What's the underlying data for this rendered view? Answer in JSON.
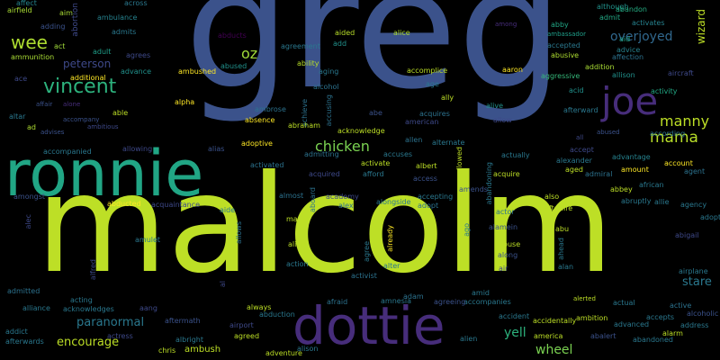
{
  "words": [
    {
      "text": "greg",
      "color": "#3b528b"
    },
    {
      "text": "malcolm",
      "color": "#bddf26"
    },
    {
      "text": "ronnie",
      "color": "#21a685"
    },
    {
      "text": "dottie",
      "color": "#472d7b"
    },
    {
      "text": "joe",
      "color": "#472d7b"
    },
    {
      "text": "vincent",
      "color": "#2db27d"
    },
    {
      "text": "wee",
      "color": "#addc30"
    },
    {
      "text": "mama",
      "color": "#b8de29"
    },
    {
      "text": "manny",
      "color": "#bddf26"
    },
    {
      "text": "chicken",
      "color": "#7ad151"
    },
    {
      "text": "oz",
      "color": "#a0da39"
    },
    {
      "text": "peterson",
      "color": "#3e4989"
    },
    {
      "text": "overjoyed",
      "color": "#31688e"
    },
    {
      "text": "wizard",
      "color": "#bddf26"
    },
    {
      "text": "paranormal",
      "color": "#2a788e"
    },
    {
      "text": "encourage",
      "color": "#bddf26"
    },
    {
      "text": "wheel",
      "color": "#7ad151"
    },
    {
      "text": "yell",
      "color": "#2db27d"
    },
    {
      "text": "stare",
      "color": "#2a788e"
    },
    {
      "text": "affect",
      "color": "#25858e"
    },
    {
      "text": "airfield",
      "color": "#a8db34"
    },
    {
      "text": "aim",
      "color": "#a8db34"
    },
    {
      "text": "abortion",
      "color": "#3e4989"
    },
    {
      "text": "across",
      "color": "#2a788e"
    },
    {
      "text": "ambulance",
      "color": "#26828e"
    },
    {
      "text": "adding",
      "color": "#3b528b"
    },
    {
      "text": "admits",
      "color": "#2a788e"
    },
    {
      "text": "among",
      "color": "#472d7b"
    },
    {
      "text": "abby",
      "color": "#21a685"
    },
    {
      "text": "although",
      "color": "#21918c"
    },
    {
      "text": "abandon",
      "color": "#25ac82"
    },
    {
      "text": "admit",
      "color": "#22a884"
    },
    {
      "text": "activates",
      "color": "#26828e"
    },
    {
      "text": "ammunition",
      "color": "#a8db34"
    },
    {
      "text": "act",
      "color": "#a0da39"
    },
    {
      "text": "adult",
      "color": "#1f9e89"
    },
    {
      "text": "abducts",
      "color": "#440154"
    },
    {
      "text": "agreement",
      "color": "#2a788e"
    },
    {
      "text": "add",
      "color": "#21918c"
    },
    {
      "text": "aided",
      "color": "#b8de29"
    },
    {
      "text": "alice",
      "color": "#addc30"
    },
    {
      "text": "ambassador",
      "color": "#1f9e89"
    },
    {
      "text": "accepted",
      "color": "#2a788e"
    },
    {
      "text": "aid",
      "color": "#20a486"
    },
    {
      "text": "advice",
      "color": "#26828e"
    },
    {
      "text": "agrees",
      "color": "#3e4989"
    },
    {
      "text": "ability",
      "color": "#b8de29"
    },
    {
      "text": "aaron",
      "color": "#fde725"
    },
    {
      "text": "abusive",
      "color": "#addc30"
    },
    {
      "text": "affection",
      "color": "#2c728e"
    },
    {
      "text": "ace",
      "color": "#3e4989"
    },
    {
      "text": "advance",
      "color": "#21918c"
    },
    {
      "text": "additional",
      "color": "#fde725"
    },
    {
      "text": "ambushed",
      "color": "#fde725"
    },
    {
      "text": "abused",
      "color": "#21918c"
    },
    {
      "text": "aging",
      "color": "#2a788e"
    },
    {
      "text": "accomplice",
      "color": "#bddf26"
    },
    {
      "text": "aggressive",
      "color": "#35b779"
    },
    {
      "text": "addition",
      "color": "#a8db34"
    },
    {
      "text": "allison",
      "color": "#21918c"
    },
    {
      "text": "aircraft",
      "color": "#3e4989"
    },
    {
      "text": "affair",
      "color": "#3b528b"
    },
    {
      "text": "alone",
      "color": "#472d7b"
    },
    {
      "text": "alpha",
      "color": "#fde725"
    },
    {
      "text": "alcohol",
      "color": "#2c728e"
    },
    {
      "text": "age",
      "color": "#2a788e"
    },
    {
      "text": "ally",
      "color": "#bddf26"
    },
    {
      "text": "acid",
      "color": "#21918c"
    },
    {
      "text": "activity",
      "color": "#22a884"
    },
    {
      "text": "altar",
      "color": "#2a788e"
    },
    {
      "text": "able",
      "color": "#bddf26"
    },
    {
      "text": "ambrose",
      "color": "#2c728e"
    },
    {
      "text": "achieve",
      "color": "#2c728e"
    },
    {
      "text": "acquires",
      "color": "#2c728e"
    },
    {
      "text": "alive",
      "color": "#21918c"
    },
    {
      "text": "afterward",
      "color": "#2a788e"
    },
    {
      "text": "ad",
      "color": "#addc30"
    },
    {
      "text": "accompany",
      "color": "#3b528b"
    },
    {
      "text": "ambitious",
      "color": "#3e4989"
    },
    {
      "text": "absence",
      "color": "#fde725"
    },
    {
      "text": "abraham",
      "color": "#bddf26"
    },
    {
      "text": "accusing",
      "color": "#2c728e"
    },
    {
      "text": "abe",
      "color": "#3b528b"
    },
    {
      "text": "american",
      "color": "#3e4989"
    },
    {
      "text": "allow",
      "color": "#3e4989"
    },
    {
      "text": "according",
      "color": "#2c728e"
    },
    {
      "text": "advises",
      "color": "#3b528b"
    },
    {
      "text": "acknowledge",
      "color": "#bddf26"
    },
    {
      "text": "allen",
      "color": "#2c728e"
    },
    {
      "text": "alternate",
      "color": "#2a788e"
    },
    {
      "text": "all",
      "color": "#3e4989"
    },
    {
      "text": "abused",
      "color": "#3b528b"
    },
    {
      "text": "adoptive",
      "color": "#fde725"
    },
    {
      "text": "accompanied",
      "color": "#2a788e"
    },
    {
      "text": "allowing",
      "color": "#3e4989"
    },
    {
      "text": "alias",
      "color": "#3b528b"
    },
    {
      "text": "accuses",
      "color": "#2a788e"
    },
    {
      "text": "actually",
      "color": "#2a788e"
    },
    {
      "text": "accept",
      "color": "#3e4989"
    },
    {
      "text": "advantage",
      "color": "#26828e"
    },
    {
      "text": "admitting",
      "color": "#2c728e"
    },
    {
      "text": "activated",
      "color": "#2c728e"
    },
    {
      "text": "acquired",
      "color": "#3e4989"
    },
    {
      "text": "afford",
      "color": "#2a788e"
    },
    {
      "text": "activate",
      "color": "#bddf26"
    },
    {
      "text": "albert",
      "color": "#bddf26"
    },
    {
      "text": "allowed",
      "color": "#bddf26"
    },
    {
      "text": "abandoning",
      "color": "#2a788e"
    },
    {
      "text": "alexander",
      "color": "#2a788e"
    },
    {
      "text": "account",
      "color": "#fde725"
    },
    {
      "text": "agent",
      "color": "#2c728e"
    },
    {
      "text": "access",
      "color": "#3b528b"
    },
    {
      "text": "acquire",
      "color": "#bddf26"
    },
    {
      "text": "aged",
      "color": "#bddf26"
    },
    {
      "text": "amount",
      "color": "#fde725"
    },
    {
      "text": "admiral",
      "color": "#2c728e"
    },
    {
      "text": "abbey",
      "color": "#bddf26"
    },
    {
      "text": "african",
      "color": "#2a788e"
    },
    {
      "text": "amongst",
      "color": "#3b528b"
    },
    {
      "text": "abducted",
      "color": "#fde725"
    },
    {
      "text": "acquaintance",
      "color": "#3e4989"
    },
    {
      "text": "almost",
      "color": "#2c728e"
    },
    {
      "text": "aboard",
      "color": "#2c728e"
    },
    {
      "text": "academy",
      "color": "#3e4989"
    },
    {
      "text": "alex",
      "color": "#2c728e"
    },
    {
      "text": "alongside",
      "color": "#2a788e"
    },
    {
      "text": "accepting",
      "color": "#2a788e"
    },
    {
      "text": "adopt",
      "color": "#2c728e"
    },
    {
      "text": "amends",
      "color": "#3b528b"
    },
    {
      "text": "also",
      "color": "#bddf26"
    },
    {
      "text": "afterlife",
      "color": "#bddf26"
    },
    {
      "text": "abruptly",
      "color": "#2a788e"
    },
    {
      "text": "allie",
      "color": "#2a788e"
    },
    {
      "text": "agency",
      "color": "#2a788e"
    },
    {
      "text": "aide",
      "color": "#2a788e"
    },
    {
      "text": "mall",
      "color": "#bddf26"
    },
    {
      "text": "actor",
      "color": "#2c728e"
    },
    {
      "text": "adopted",
      "color": "#2a788e"
    },
    {
      "text": "alec",
      "color": "#3e4989"
    },
    {
      "text": "amulet",
      "color": "#2a788e"
    },
    {
      "text": "allows",
      "color": "#2c728e"
    },
    {
      "text": "align",
      "color": "#bddf26"
    },
    {
      "text": "already",
      "color": "#fde725"
    },
    {
      "text": "alamein",
      "color": "#3b528b"
    },
    {
      "text": "abu",
      "color": "#bddf26"
    },
    {
      "text": "abigail",
      "color": "#3e4989"
    },
    {
      "text": "ago",
      "color": "#2a788e"
    },
    {
      "text": "abuse",
      "color": "#bddf26"
    },
    {
      "text": "ahead",
      "color": "#2a788e"
    },
    {
      "text": "along",
      "color": "#3b528b"
    },
    {
      "text": "alfred",
      "color": "#3e4989"
    },
    {
      "text": "action",
      "color": "#2a788e"
    },
    {
      "text": "agree",
      "color": "#2a788e"
    },
    {
      "text": "alter",
      "color": "#2a788e"
    },
    {
      "text": "air",
      "color": "#3e4989"
    },
    {
      "text": "alan",
      "color": "#2a788e"
    },
    {
      "text": "airplane",
      "color": "#2a788e"
    },
    {
      "text": "admitted",
      "color": "#2c728e"
    },
    {
      "text": "al",
      "color": "#3e4989"
    },
    {
      "text": "activist",
      "color": "#2c728e"
    },
    {
      "text": "adam",
      "color": "#2c728e"
    },
    {
      "text": "amid",
      "color": "#2a788e"
    },
    {
      "text": "accompanies",
      "color": "#2a788e"
    },
    {
      "text": "acting",
      "color": "#2a788e"
    },
    {
      "text": "afraid",
      "color": "#2c728e"
    },
    {
      "text": "amnesia",
      "color": "#2a788e"
    },
    {
      "text": "agreeing",
      "color": "#3b528b"
    },
    {
      "text": "alerted",
      "color": "#bddf26"
    },
    {
      "text": "actual",
      "color": "#2a788e"
    },
    {
      "text": "active",
      "color": "#2c728e"
    },
    {
      "text": "alcoholic",
      "color": "#3b528b"
    },
    {
      "text": "alliance",
      "color": "#2a788e"
    },
    {
      "text": "acknowledges",
      "color": "#2a788e"
    },
    {
      "text": "aang",
      "color": "#3e4989"
    },
    {
      "text": "always",
      "color": "#bddf26"
    },
    {
      "text": "abduction",
      "color": "#2a788e"
    },
    {
      "text": "accident",
      "color": "#2a788e"
    },
    {
      "text": "ambition",
      "color": "#bddf26"
    },
    {
      "text": "accepts",
      "color": "#2a788e"
    },
    {
      "text": "address",
      "color": "#2a788e"
    },
    {
      "text": "aftermath",
      "color": "#3b528b"
    },
    {
      "text": "airport",
      "color": "#3e4989"
    },
    {
      "text": "accidentally",
      "color": "#bddf26"
    },
    {
      "text": "advanced",
      "color": "#2a788e"
    },
    {
      "text": "alarm",
      "color": "#bddf26"
    },
    {
      "text": "addict",
      "color": "#2a788e"
    },
    {
      "text": "actress",
      "color": "#3e4989"
    },
    {
      "text": "america",
      "color": "#bddf26"
    },
    {
      "text": "abalert",
      "color": "#3b528b"
    },
    {
      "text": "abandoned",
      "color": "#2a788e"
    },
    {
      "text": "afterwards",
      "color": "#2a788e"
    },
    {
      "text": "albright",
      "color": "#2a788e"
    },
    {
      "text": "agreed",
      "color": "#bddf26"
    },
    {
      "text": "alien",
      "color": "#2a788e"
    },
    {
      "text": "chris",
      "color": "#bddf26"
    },
    {
      "text": "ambush",
      "color": "#bddf26"
    },
    {
      "text": "adventure",
      "color": "#bddf26"
    },
    {
      "text": "alison",
      "color": "#2a788e"
    }
  ]
}
